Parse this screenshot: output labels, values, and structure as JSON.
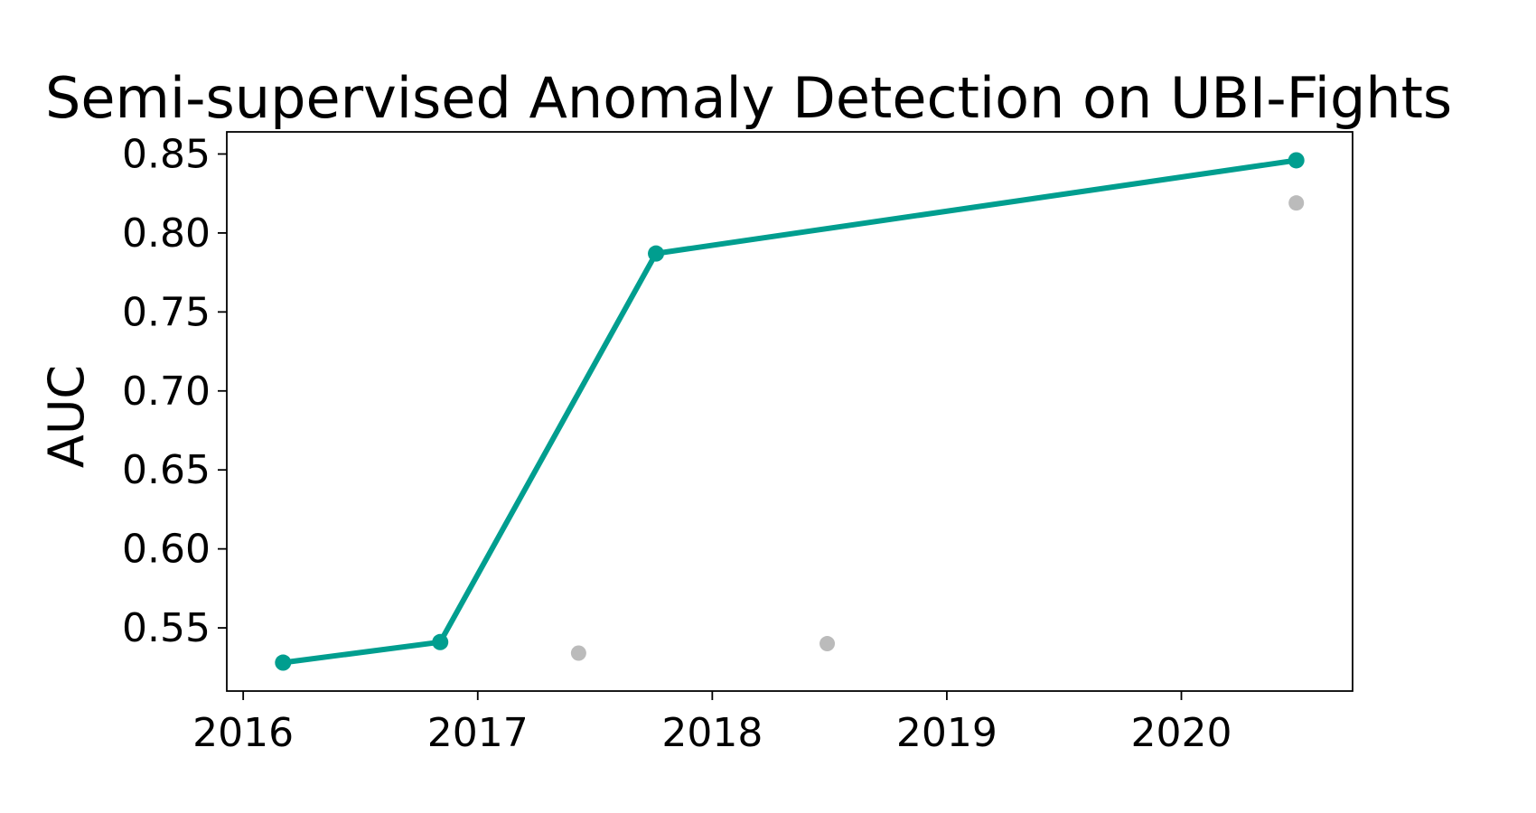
{
  "chart_data": {
    "type": "line",
    "title": "Semi-supervised Anomaly Detection on UBI-Fights",
    "xlabel": "",
    "ylabel": "AUC",
    "xlim": [
      2015.93,
      2020.73
    ],
    "ylim": [
      0.51,
      0.864
    ],
    "xticks": [
      2016,
      2017,
      2018,
      2019,
      2020
    ],
    "yticks": [
      0.55,
      0.6,
      0.65,
      0.7,
      0.75,
      0.8,
      0.85
    ],
    "grid": false,
    "legend": "none",
    "series": [
      {
        "role": "state-of-the-art",
        "color": "#009e8f",
        "line": true,
        "points": [
          {
            "x": 2016.17,
            "y": 0.528
          },
          {
            "x": 2016.84,
            "y": 0.541
          },
          {
            "x": 2017.76,
            "y": 0.787
          },
          {
            "x": 2020.49,
            "y": 0.846
          }
        ]
      },
      {
        "role": "other-methods",
        "color": "#bbbbbb",
        "line": false,
        "points": [
          {
            "x": 2017.43,
            "y": 0.534
          },
          {
            "x": 2018.49,
            "y": 0.54
          },
          {
            "x": 2020.49,
            "y": 0.819
          }
        ]
      }
    ]
  }
}
